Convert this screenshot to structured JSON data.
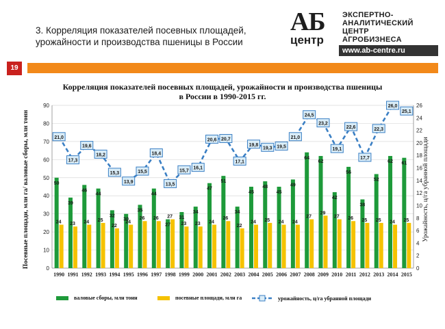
{
  "header": {
    "title": "3. Корреляция показателей посевных площадей, урожайности и производства пшеницы в России",
    "slide_number": "19"
  },
  "logo": {
    "brand": "АБ",
    "brand_sub": "центр",
    "desc_lines": [
      "ЭКСПЕРТНО-",
      "АНАЛИТИЧЕСКИЙ",
      "ЦЕНТР",
      "АГРОБИЗНЕСА"
    ],
    "url": "www.ab-centre.ru"
  },
  "colors": {
    "accent_orange": "#f2891a",
    "slide_num_red": "#c9211e",
    "bar_green": "#1e9a3a",
    "bar_yellow": "#f5c200",
    "line_blue": "#3a7fc4",
    "marker_fill": "#d9ecf7"
  },
  "chart_data": {
    "type": "bar",
    "title": "Корреляция показателей посевных площадей, урожайности и производства пшеницы в России в 1990-2015 гг.",
    "ylabel_left": "Посевные площади, млн га/ валовые сборы, млн тонн",
    "ylabel_right": "Урожайность, ц/га убранной площади",
    "ylim_left": [
      0,
      90
    ],
    "ylim_right": [
      0,
      26
    ],
    "yticks_left": [
      0,
      10,
      20,
      30,
      40,
      50,
      60,
      70,
      80,
      90
    ],
    "yticks_right": [
      0,
      2,
      4,
      6,
      8,
      10,
      12,
      14,
      16,
      18,
      20,
      22,
      24,
      26
    ],
    "categories": [
      "1990",
      "1991",
      "1992",
      "1993",
      "1994",
      "1995",
      "1996",
      "1997",
      "1998",
      "1999",
      "2000",
      "2001",
      "2002",
      "2003",
      "2004",
      "2005",
      "2006",
      "2007",
      "2008",
      "2009",
      "2010",
      "2011",
      "2012",
      "2013",
      "2014",
      "2015"
    ],
    "series": [
      {
        "name": "валовые сборы, млн тонн",
        "kind": "bar",
        "axis": "left",
        "color": "#1e9a3a",
        "values": [
          50,
          39,
          46,
          44,
          32,
          30,
          35,
          44,
          27,
          31,
          34,
          47,
          51,
          34,
          45,
          48,
          45,
          49,
          64,
          62,
          42,
          56,
          38,
          52,
          62,
          61
        ]
      },
      {
        "name": "посевные площади, млн га",
        "kind": "bar",
        "axis": "left",
        "color": "#f5c200",
        "values": [
          24,
          23,
          24,
          25,
          22,
          24,
          26,
          26,
          27,
          23,
          23,
          24,
          26,
          22,
          24,
          25,
          24,
          24,
          27,
          29,
          27,
          26,
          25,
          25,
          24,
          25
        ]
      },
      {
        "name": "урожайность, ц/га убранной площади",
        "kind": "line",
        "axis": "right",
        "color": "#3a7fc4",
        "values": [
          21.0,
          17.3,
          19.6,
          18.2,
          15.3,
          13.9,
          15.5,
          18.4,
          13.5,
          15.7,
          16.1,
          20.6,
          20.7,
          17.1,
          19.8,
          19.3,
          19.5,
          21.0,
          24.5,
          23.2,
          19.1,
          22.6,
          17.7,
          22.3,
          26.0,
          25.1
        ],
        "labels": [
          "21,0",
          "17,3",
          "19,6",
          "18,2",
          "15,3",
          "13,9",
          "15,5",
          "18,4",
          "13,5",
          "15,7",
          "16,1",
          "20,6",
          "20,7",
          "17,1",
          "19,8",
          "19,3",
          "19,5",
          "21,0",
          "24,5",
          "23,2",
          "19,1",
          "22,6",
          "17,7",
          "22,3",
          "26,0",
          "25,1"
        ]
      }
    ],
    "grid": true,
    "legend_position": "bottom"
  }
}
